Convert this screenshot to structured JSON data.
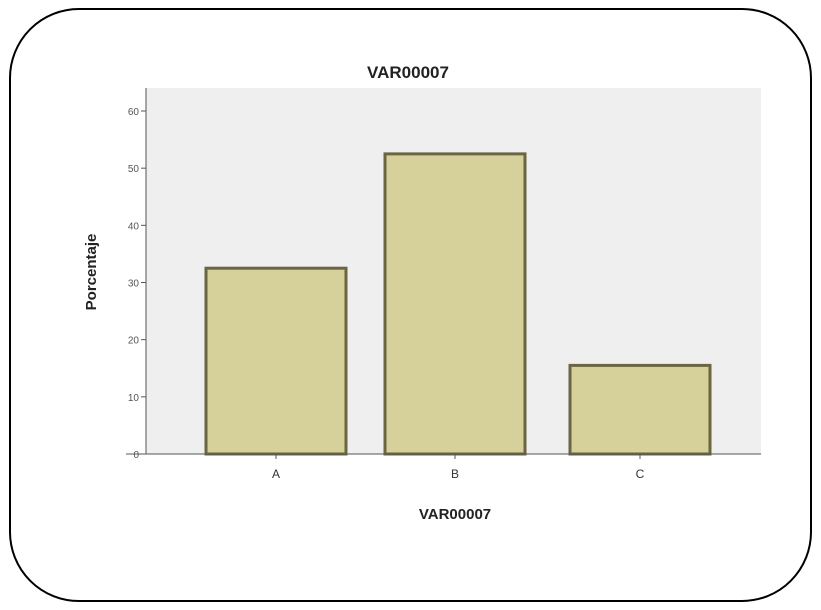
{
  "colors": {
    "plot_background": "#efefef",
    "bar_fill": "#d6d09a",
    "bar_stroke": "#6b6642",
    "frame_border": "#000000"
  },
  "chart_data": {
    "type": "bar",
    "title": "VAR00007",
    "xlabel": "VAR00007",
    "ylabel": "Porcentaje",
    "categories": [
      "A",
      "B",
      "C"
    ],
    "values": [
      32.5,
      52.5,
      15.5
    ],
    "ylim": [
      0,
      60
    ],
    "yticks": [
      "0",
      "10",
      "20",
      "30",
      "40",
      "50",
      "60"
    ],
    "grid": false,
    "legend": "none"
  }
}
